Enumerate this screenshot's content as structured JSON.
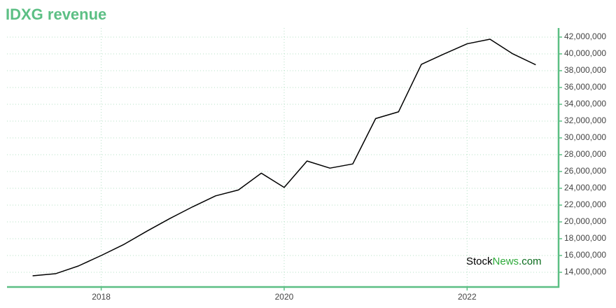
{
  "chart_data": {
    "type": "line",
    "title": "IDXG revenue",
    "x": [
      2017.25,
      2017.5,
      2017.75,
      2018.0,
      2018.25,
      2018.5,
      2018.75,
      2019.0,
      2019.25,
      2019.5,
      2019.75,
      2020.0,
      2020.25,
      2020.5,
      2020.75,
      2021.0,
      2021.25,
      2021.5,
      2021.75,
      2022.0,
      2022.25,
      2022.5,
      2022.75
    ],
    "values": [
      13580000,
      13830000,
      14750000,
      16000000,
      17330000,
      18900000,
      20400000,
      21800000,
      23100000,
      23800000,
      25800000,
      24100000,
      27250000,
      26400000,
      26900000,
      32300000,
      33100000,
      38750000,
      40000000,
      41200000,
      41750000,
      40000000,
      38700000
    ],
    "color": "#000000",
    "xlim": [
      2016.97,
      2023.0
    ],
    "xticks": [
      2018,
      2020,
      2022
    ],
    "ylim": [
      12250000,
      43080000
    ],
    "yticks": [
      {
        "value": 14000000,
        "label": "14,000,000"
      },
      {
        "value": 16000000,
        "label": "16,000,000"
      },
      {
        "value": 18000000,
        "label": "18,000,000"
      },
      {
        "value": 20000000,
        "label": "20,000,000"
      },
      {
        "value": 22000000,
        "label": "22,000,000"
      },
      {
        "value": 24000000,
        "label": "24,000,000"
      },
      {
        "value": 26000000,
        "label": "26,000,000"
      },
      {
        "value": 28000000,
        "label": "28,000,000"
      },
      {
        "value": 30000000,
        "label": "30,000,000"
      },
      {
        "value": 32000000,
        "label": "32,000,000"
      },
      {
        "value": 34000000,
        "label": "34,000,000"
      },
      {
        "value": 36000000,
        "label": "36,000,000"
      },
      {
        "value": 38000000,
        "label": "38,000,000"
      },
      {
        "value": 40000000,
        "label": "40,000,000"
      },
      {
        "value": 42000000,
        "label": "42,000,000"
      }
    ],
    "grid": true,
    "watermark": [
      "Stock",
      "News",
      ".com"
    ]
  }
}
